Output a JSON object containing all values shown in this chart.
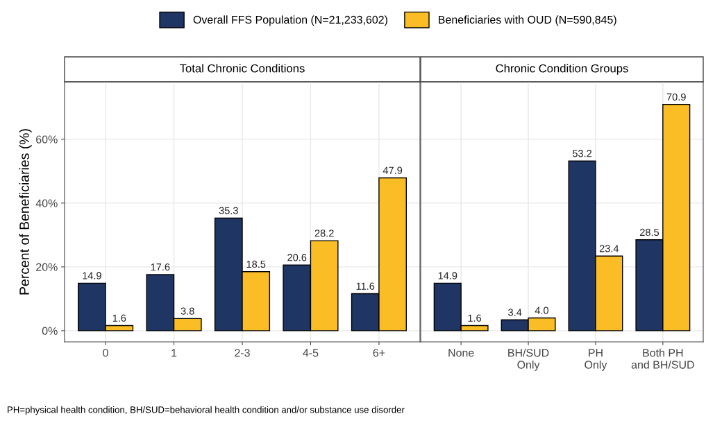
{
  "chart_data": [
    {
      "type": "bar",
      "title": "Total Chronic Conditions",
      "ylabel": "Percent of Beneficiaries (%)",
      "categories": [
        "0",
        "1",
        "2-3",
        "4-5",
        "6+"
      ],
      "series": [
        {
          "name": "Overall FFS Population (N=21,233,602)",
          "color": "#1f3564",
          "values": [
            14.9,
            17.6,
            35.3,
            20.6,
            11.6
          ]
        },
        {
          "name": "Beneficiaries with OUD (N=590,845)",
          "color": "#fbbd25",
          "values": [
            1.6,
            3.8,
            18.5,
            28.2,
            47.9
          ]
        }
      ],
      "ylim": [
        -3.5,
        78
      ],
      "yticks": [
        {
          "value": 0,
          "label": "0%"
        },
        {
          "value": 20,
          "label": "20%"
        },
        {
          "value": 40,
          "label": "40%"
        },
        {
          "value": 60,
          "label": "60%"
        }
      ],
      "data_labels": true,
      "grid": true,
      "legend": "top",
      "annotations": [
        "PH=physical health condition, BH/SUD=behavioral health condition and/or substance use disorder"
      ]
    },
    {
      "type": "bar",
      "title": "Chronic Condition Groups",
      "categories": [
        "None",
        "BH/SUD\nOnly",
        "PH\nOnly",
        "Both PH\nand BH/SUD"
      ],
      "series": [
        {
          "color": "#1f3564",
          "values": [
            14.9,
            3.4,
            53.2,
            28.5
          ]
        },
        {
          "color": "#fbbd25",
          "values": [
            1.6,
            4.0,
            23.4,
            70.9
          ],
          "value_labels": [
            "1.6",
            "4.0",
            "23.4",
            "70.9"
          ]
        }
      ],
      "ylim": [
        -3.5,
        78
      ],
      "yticks": [
        0,
        20,
        40,
        60
      ],
      "data_labels": true,
      "grid": true,
      "tick_labels": "x"
    }
  ]
}
